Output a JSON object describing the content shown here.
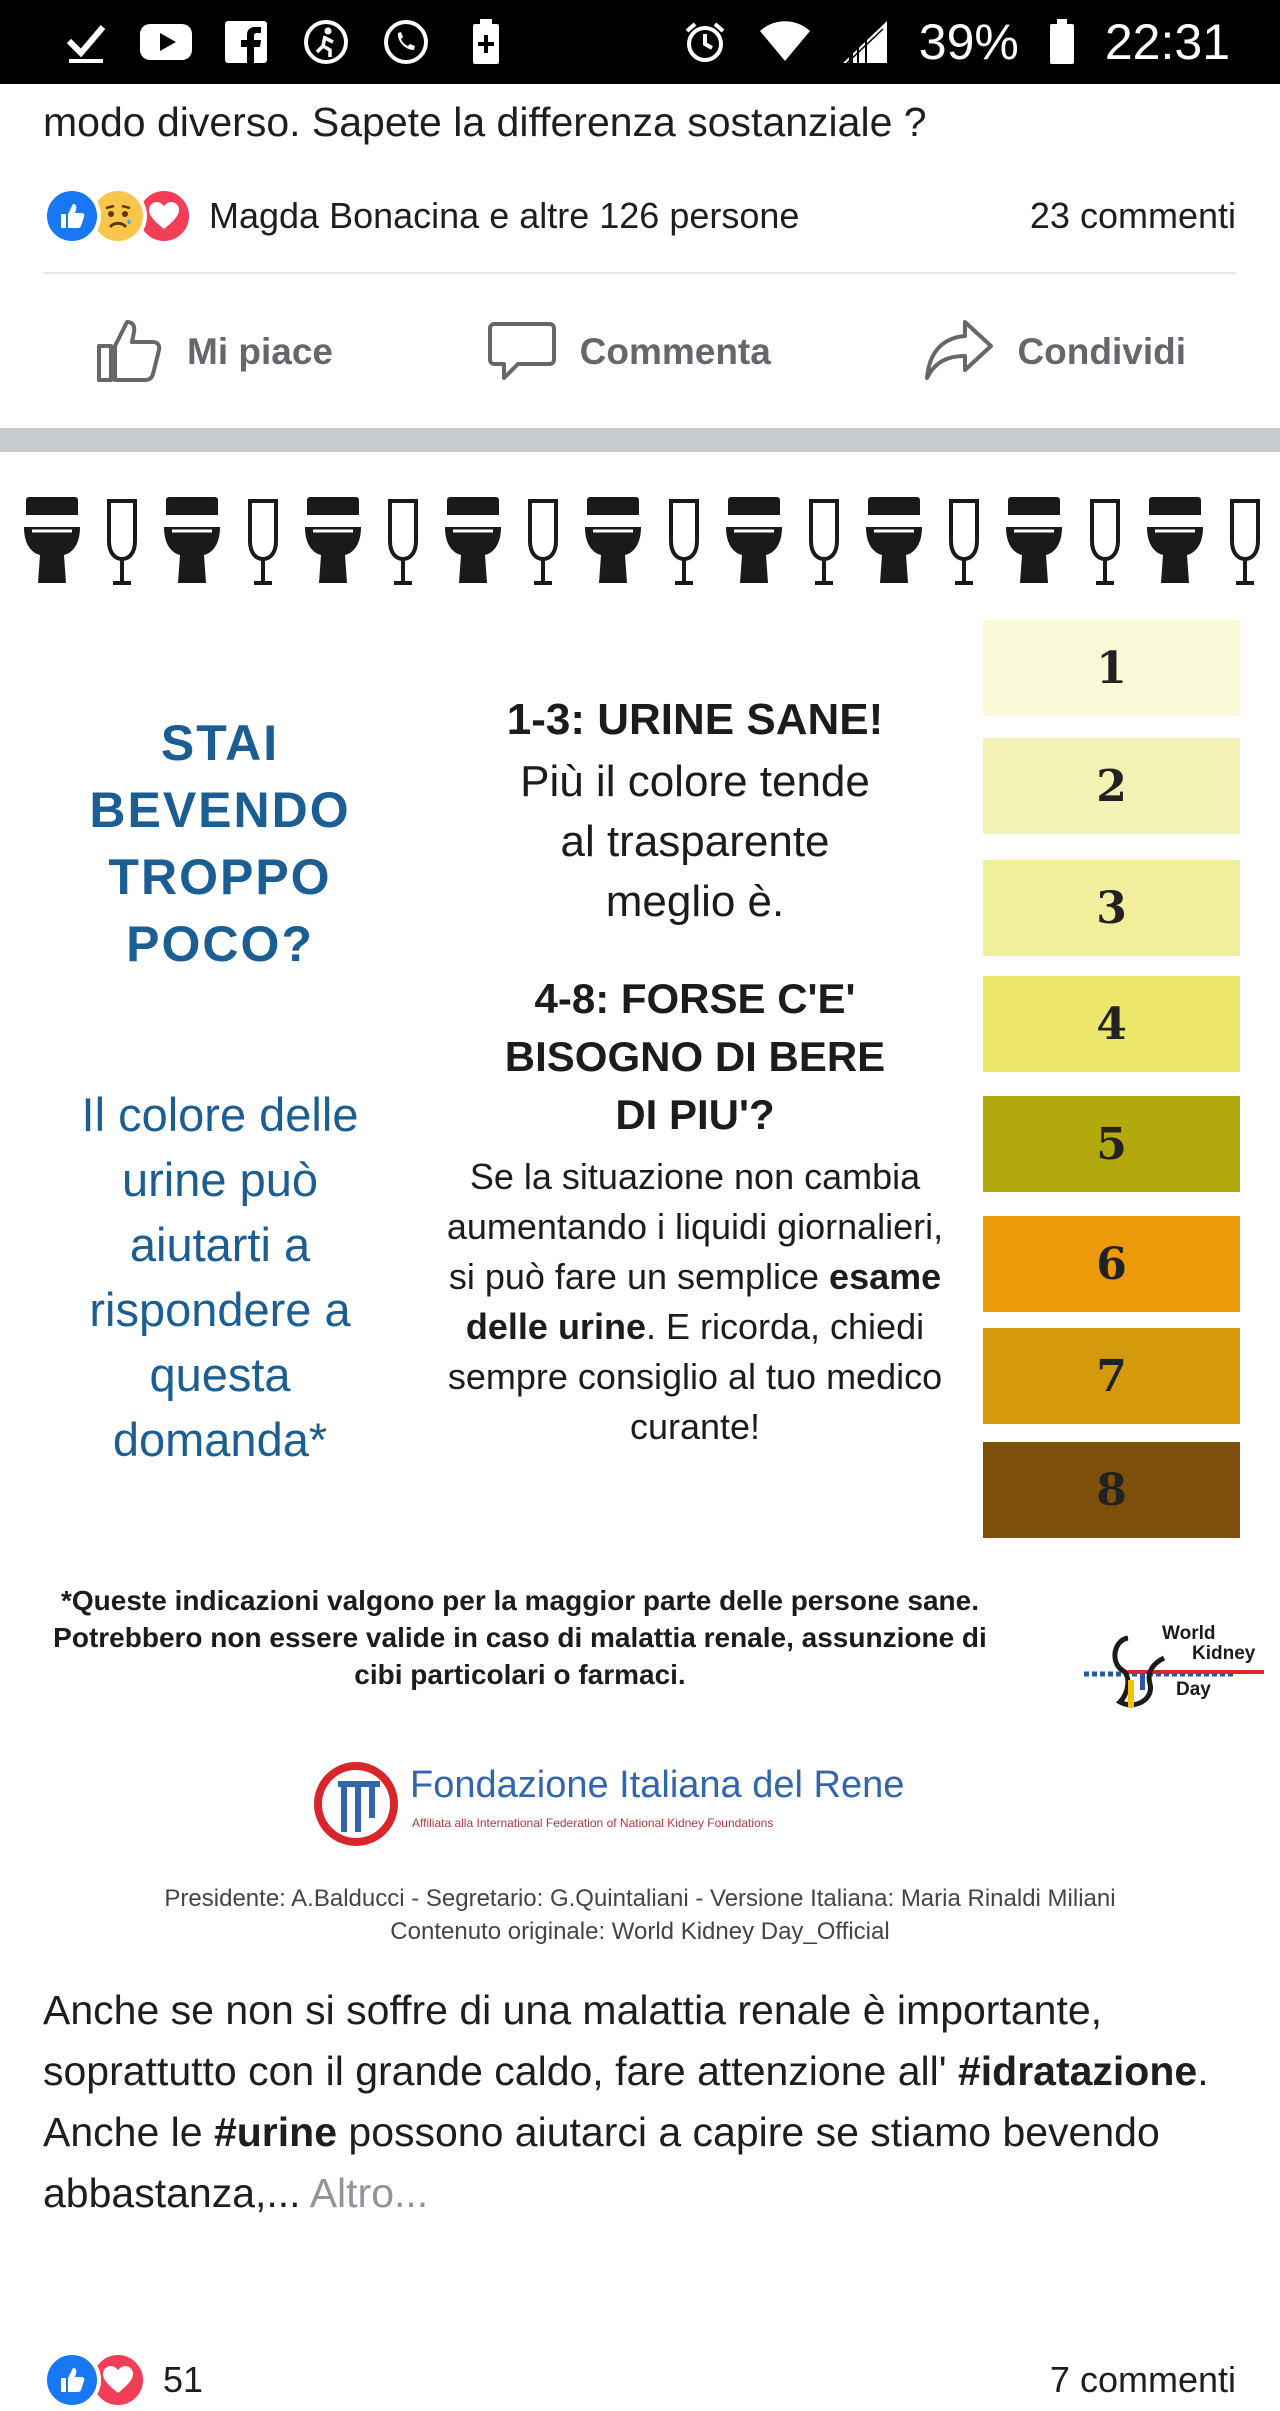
{
  "status_bar": {
    "battery_percent": "39%",
    "time": "22:31",
    "icons": [
      "check-icon",
      "youtube-icon",
      "facebook-icon",
      "accessibility-icon",
      "phone-icon",
      "battery-plus-icon"
    ],
    "right_icons": [
      "alarm-icon",
      "wifi-icon",
      "signal-icon",
      "battery-icon"
    ]
  },
  "post1": {
    "text": "modo diverso. Sapete la differenza sostanziale ?",
    "reactions_text": "Magda Bonacina e altre 126 persone",
    "comments": "23 commenti",
    "reaction_icons": [
      "like-icon",
      "sad-icon",
      "love-icon"
    ]
  },
  "actions": {
    "like": "Mi piace",
    "comment": "Commenta",
    "share": "Condividi"
  },
  "infographic": {
    "question": "STAI BEVENDO TROPPO POCO?",
    "question_lines": [
      "STAI",
      "BEVENDO",
      "TROPPO",
      "POCO?"
    ],
    "color_question_lines": [
      "Il colore delle",
      "urine può",
      "aiutarti a",
      "rispondere a",
      "questa",
      "domanda*"
    ],
    "heading1": "1-3: URINE SANE!",
    "text1_lines": [
      "Più il colore tende",
      "al trasparente",
      "meglio è."
    ],
    "heading2_lines": [
      "4-8: FORSE C'E'",
      "BISOGNO DI BERE",
      "DI PIU'?"
    ],
    "text2_a": "Se la situazione non cambia aumentando i liquidi giornalieri, si può fare un semplice ",
    "text2_bold": "esame delle urine",
    "text2_b": ". E ricorda, chiedi sempre consiglio al tuo medico curante!",
    "scale": [
      {
        "label": "1",
        "color": "#fafad8"
      },
      {
        "label": "2",
        "color": "#f3f1b4"
      },
      {
        "label": "3",
        "color": "#f1ef9c"
      },
      {
        "label": "4",
        "color": "#ece66a"
      },
      {
        "label": "5",
        "color": "#b3a90c"
      },
      {
        "label": "6",
        "color": "#ec9a0a"
      },
      {
        "label": "7",
        "color": "#d59a0c"
      },
      {
        "label": "8",
        "color": "#7d4f0a"
      }
    ],
    "footnote": "*Queste indicazioni valgono per la maggior parte delle persone sane. Potrebbero non essere valide in caso di malattia renale, assunzione di cibi particolari o farmaci.",
    "wkd_lines": [
      "World",
      "Kidney",
      "Day"
    ],
    "org_name": "Fondazione Italiana del Rene",
    "org_sub": "Affiliata alla International Federation of National Kidney Foundations",
    "credits_line1": "Presidente: A.Balducci - Segretario: G.Quintaliani - Versione Italiana: Maria Rinaldi Miliani",
    "credits_line2": "Contenuto originale: World Kidney Day_Official"
  },
  "post2": {
    "text_a": "Anche se non si soffre di una malattia renale è importante, soprattutto con il grande caldo, fare attenzione all' ",
    "hashtag1": "#idratazione",
    "text_b": ".",
    "text_c": "Anche le ",
    "hashtag2": "#urine",
    "text_d": " possono aiutarci a capire se stiamo bevendo abbastanza,... ",
    "more": "Altro...",
    "reaction_count": "51",
    "comments": "7 commenti"
  }
}
